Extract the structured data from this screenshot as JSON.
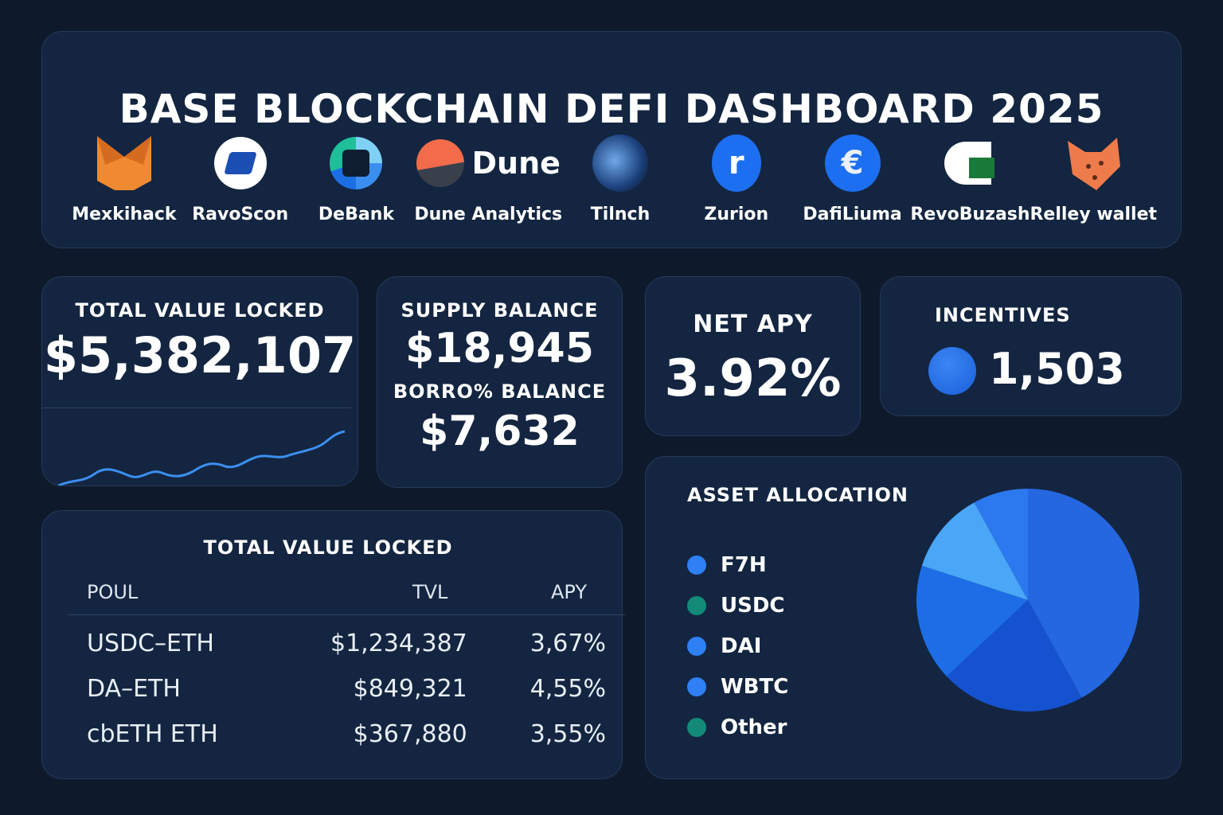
{
  "header": {
    "title": "BASE BLOCKCHAIN DEFI DASHBOARD 2025",
    "logos": [
      {
        "label": "Mexkihack",
        "icon": "fox-icon"
      },
      {
        "label": "RavoScon",
        "icon": "ravoscon-icon"
      },
      {
        "label": "DeBank",
        "icon": "debank-icon"
      },
      {
        "label": "Dune Analytics",
        "icon": "dune-icon",
        "wordmark": "Dune"
      },
      {
        "label": "Tilnch",
        "icon": "1inch-icon"
      },
      {
        "label": "Zurion",
        "icon": "zurion-icon"
      },
      {
        "label": "DafiLiuma",
        "icon": "defillama-icon"
      },
      {
        "label": "RevoBuzash",
        "icon": "revobuzash-icon"
      },
      {
        "label": "Relley wallet",
        "icon": "rabby-icon"
      }
    ]
  },
  "tvl": {
    "label": "TOTAL VALUE LOCKED",
    "value": "$5,382,107"
  },
  "balances": {
    "supply_label": "SUPPLY BALANCE",
    "supply_value": "$18,945",
    "borrow_label": "BORRO% BALANCE",
    "borrow_value": "$7,632"
  },
  "net_apy": {
    "label": "NET APY",
    "value": "3.92%"
  },
  "incentives": {
    "label": "INCENTIVES",
    "value": "1,503",
    "icon": "token-icon"
  },
  "pools": {
    "title": "TOTAL VALUE LOCKED",
    "columns": [
      "POUL",
      "TVL",
      "APY"
    ],
    "rows": [
      [
        "USDC–ETH",
        "$1,234,387",
        "3,67%"
      ],
      [
        "DA–ETH",
        "$849,321",
        "4,55%"
      ],
      [
        "cbETH ETH",
        "$367,880",
        "3,55%"
      ]
    ]
  },
  "allocation": {
    "title": "ASSET ALLOCATION",
    "legend": [
      {
        "label": "F7H",
        "color": "#2f7ff5"
      },
      {
        "label": "USDC",
        "color": "#138a78"
      },
      {
        "label": "DAI",
        "color": "#2f7ff5"
      },
      {
        "label": "WBTC",
        "color": "#2f7ff5"
      },
      {
        "label": "Other",
        "color": "#138a78"
      }
    ]
  },
  "chart_data": {
    "type": "pie",
    "values": [
      42,
      21,
      17,
      12,
      8
    ],
    "colors": [
      "#2467e0",
      "#1552d0",
      "#1d6ee6",
      "#4aa6f6",
      "#2c78ee"
    ]
  }
}
